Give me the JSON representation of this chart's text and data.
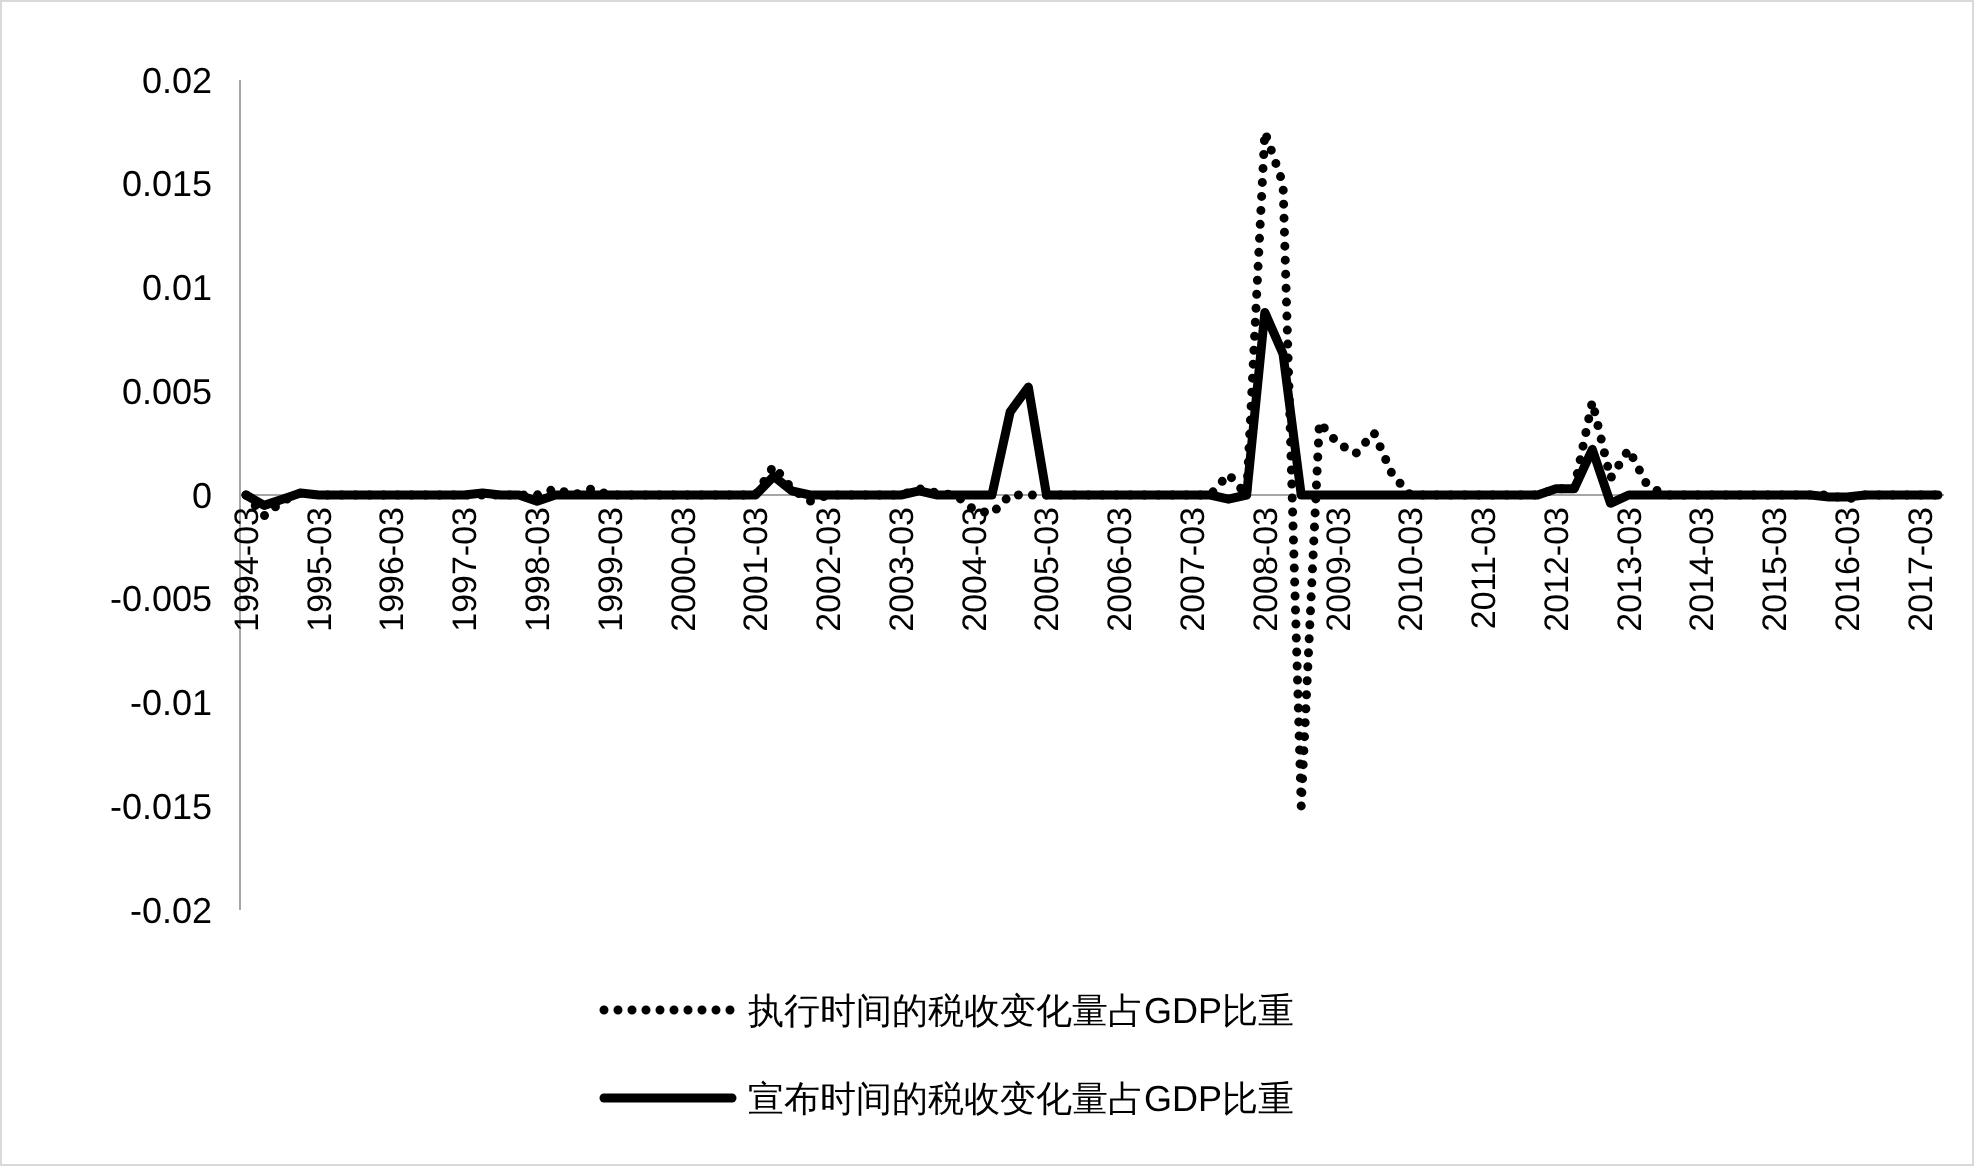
{
  "chart_data": {
    "type": "line",
    "legend": "bottom",
    "ylim": [
      -0.02,
      0.02
    ],
    "yticks": [
      -0.02,
      -0.015,
      -0.01,
      -0.005,
      0,
      0.005,
      0.01,
      0.015,
      0.02
    ],
    "categories": [
      "1994-03",
      null,
      null,
      null,
      "1995-03",
      null,
      null,
      null,
      "1996-03",
      null,
      null,
      null,
      "1997-03",
      null,
      null,
      null,
      "1998-03",
      null,
      null,
      null,
      "1999-03",
      null,
      null,
      null,
      "2000-03",
      null,
      null,
      null,
      "2001-03",
      null,
      null,
      null,
      "2002-03",
      null,
      null,
      null,
      "2003-03",
      null,
      null,
      null,
      "2004-03",
      null,
      null,
      null,
      "2005-03",
      null,
      null,
      null,
      "2006-03",
      null,
      null,
      null,
      "2007-03",
      null,
      null,
      null,
      "2008-03",
      null,
      null,
      null,
      "2009-03",
      null,
      null,
      null,
      "2010-03",
      null,
      null,
      null,
      "2011-03",
      null,
      null,
      null,
      "2012-03",
      null,
      null,
      null,
      "2013-03",
      null,
      null,
      null,
      "2014-03",
      null,
      null,
      null,
      "2015-03",
      null,
      null,
      null,
      "2016-03",
      null,
      null,
      null,
      "2017-03",
      null
    ],
    "series": [
      {
        "name": "执行时间的税收变化量占GDP比重",
        "color": "#000000",
        "line_style": "dotted",
        "values": [
          0,
          -0.001,
          -0.0003,
          0.0001,
          0,
          0,
          0,
          0,
          0,
          0,
          0,
          0,
          0,
          0,
          0,
          0,
          0,
          0.0003,
          0,
          0.0003,
          0,
          0,
          0,
          0,
          0,
          0,
          0,
          0,
          0,
          0.0014,
          0.0003,
          -0.0003,
          0,
          0,
          0,
          0,
          0,
          0.0003,
          0.0001,
          0,
          -0.0007,
          -0.0009,
          0,
          0,
          0,
          0,
          0,
          0,
          0,
          0,
          0,
          0,
          0,
          0,
          0.001,
          0,
          0.0175,
          0.015,
          -0.015,
          0.0035,
          0.0025,
          0.002,
          0.003,
          0.001,
          0,
          0,
          0,
          0,
          0,
          0,
          0,
          0,
          0.0003,
          0.0003,
          0.0045,
          0.0008,
          0.0022,
          0.0005,
          0,
          0,
          0,
          0,
          0,
          0,
          0,
          0,
          0,
          0,
          -0.0002,
          0,
          0,
          0,
          0,
          0
        ]
      },
      {
        "name": "宣布时间的税收变化量占GDP比重",
        "color": "#000000",
        "line_style": "solid",
        "values": [
          0,
          -0.0005,
          -0.0002,
          0.0001,
          0,
          0,
          0,
          0,
          0,
          0,
          0,
          0,
          0,
          0.0001,
          0,
          0,
          -0.0003,
          0,
          0,
          0,
          0,
          0,
          0,
          0,
          0,
          0,
          0,
          0,
          0,
          0.0009,
          0.0002,
          0,
          0,
          0,
          0,
          0,
          0,
          0.0002,
          0,
          0,
          0,
          0,
          0.004,
          0.0052,
          0,
          0,
          0,
          0,
          0,
          0,
          0,
          0,
          0,
          0,
          -0.0002,
          0,
          0.0088,
          0.0068,
          0,
          0,
          0,
          0,
          0,
          0,
          0,
          0,
          0,
          0,
          0,
          0,
          0,
          0,
          0.0003,
          0.0003,
          0.0022,
          -0.0004,
          0,
          0,
          0,
          0,
          0,
          0,
          0,
          0,
          0,
          0,
          0,
          -0.0001,
          -0.0001,
          0,
          0,
          0,
          0,
          0
        ]
      }
    ]
  }
}
